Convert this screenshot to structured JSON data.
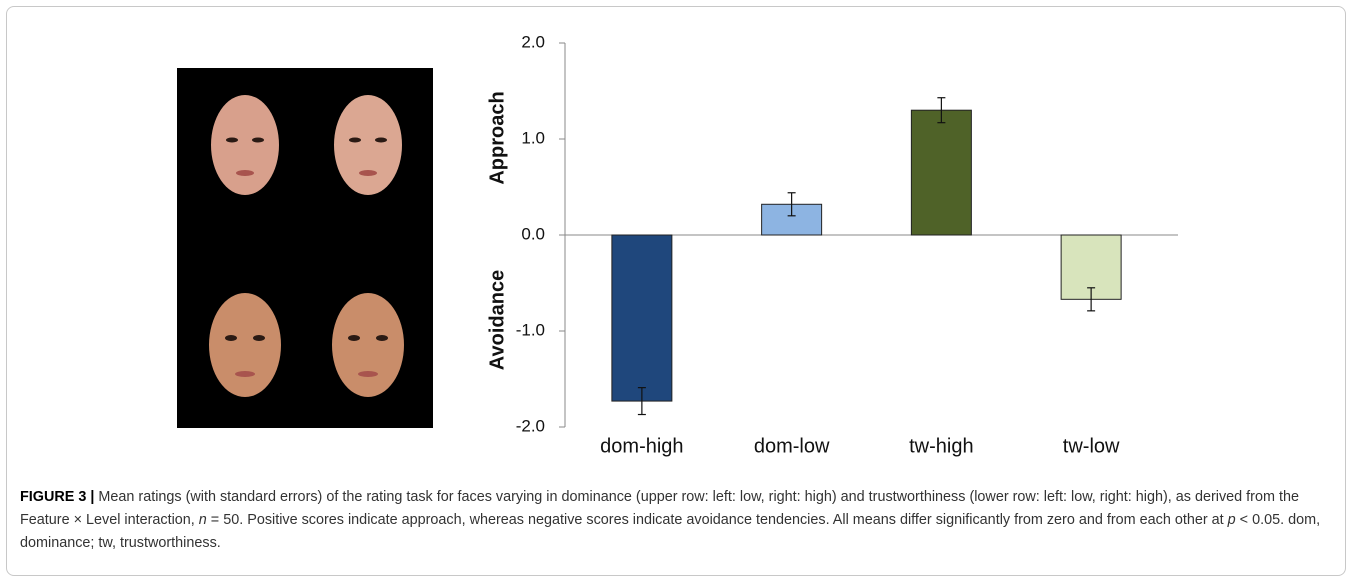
{
  "chart_data": {
    "type": "bar",
    "categories": [
      "dom-high",
      "dom-low",
      "tw-high",
      "tw-low"
    ],
    "values": [
      -1.73,
      0.32,
      1.3,
      -0.67
    ],
    "errors": [
      0.14,
      0.12,
      0.13,
      0.12
    ],
    "colors": [
      "#1f477c",
      "#8db4e2",
      "#4f6228",
      "#d8e4bc"
    ],
    "ylim": [
      -2,
      2
    ],
    "yticks": [
      {
        "value": -2,
        "label": "-2.0"
      },
      {
        "value": -1,
        "label": "-1.0"
      },
      {
        "value": 0,
        "label": "0.0"
      },
      {
        "value": 1,
        "label": "1.0"
      },
      {
        "value": 2,
        "label": "2.0"
      }
    ],
    "ylabel_positive": "Approach",
    "ylabel_negative": "Avoidance"
  },
  "caption": {
    "label": "FIGURE 3 |",
    "parts": [
      {
        "text": " Mean ratings (with standard errors) of the rating task for faces varying in dominance (upper row: left: low, right: high) and trustworthiness (lower row: left: low, right: high), as derived from the Feature × Level interaction, ",
        "italic": false
      },
      {
        "text": "n",
        "italic": true
      },
      {
        "text": " = 50. Positive scores indicate approach, whereas negative scores indicate avoidance tendencies. All means differ significantly from zero and from each other at ",
        "italic": false
      },
      {
        "text": "p",
        "italic": true
      },
      {
        "text": " < 0.05. dom, dominance; tw, trustworthiness.",
        "italic": false
      }
    ]
  }
}
